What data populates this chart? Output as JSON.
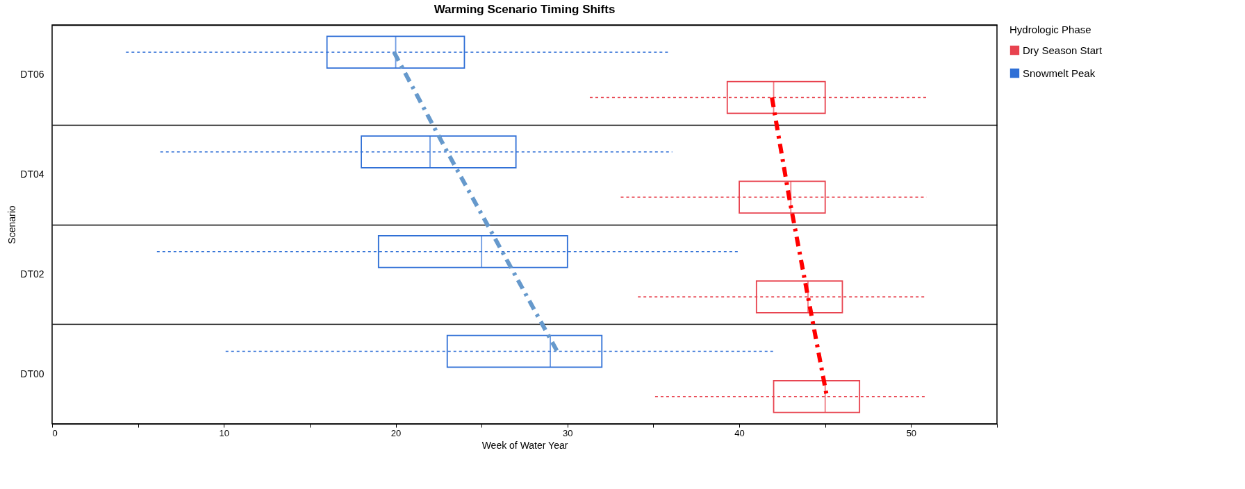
{
  "chart_data": {
    "type": "box",
    "orientation": "horizontal",
    "title": "Warming Scenario Timing Shifts",
    "xlabel": "Week of Water Year",
    "ylabel": "Scenario",
    "legend_title": "Hydrologic Phase",
    "legend": "top right",
    "grid": "y",
    "marker": "none",
    "categories": [
      "DT06",
      "DT04",
      "DT02",
      "DT00"
    ],
    "xlim": [
      0,
      55
    ],
    "xticks": [
      0,
      {
        "value": 5,
        "label": null
      },
      10,
      {
        "value": 15,
        "label": null
      },
      20,
      {
        "value": 25,
        "label": null
      },
      30,
      {
        "value": 35,
        "label": null
      },
      40,
      {
        "value": 45,
        "label": null
      },
      50,
      {
        "value": 55,
        "label": null
      }
    ],
    "series": [
      {
        "name": "Dry Season Start",
        "color": "#e8434f",
        "boxes": [
          {
            "low": 31.3,
            "q1": 39.3,
            "median": 42,
            "q3": 45,
            "high": 50.9
          },
          {
            "low": 33.1,
            "q1": 40,
            "median": 43,
            "q3": 45,
            "high": 50.9
          },
          {
            "low": 34.1,
            "q1": 41,
            "median": 44,
            "q3": 46,
            "high": 50.9
          },
          {
            "low": 35.1,
            "q1": 42,
            "median": 45,
            "q3": 47,
            "high": 50.9
          }
        ]
      },
      {
        "name": "Snowmelt Peak",
        "color": "#2f6fd6",
        "boxes": [
          {
            "low": 4.3,
            "q1": 16,
            "median": 20,
            "q3": 24,
            "high": 35.9
          },
          {
            "low": 6.3,
            "q1": 18,
            "median": 22,
            "q3": 27,
            "high": 36.1
          },
          {
            "low": 6.1,
            "q1": 19,
            "median": 25,
            "q3": 30,
            "high": 40
          },
          {
            "low": 10.1,
            "q1": 23,
            "median": 29,
            "q3": 32,
            "high": 42
          }
        ]
      },
      {
        "type": "line",
        "color": "#ff0000",
        "line_style": "dashed",
        "values": [
          41.9,
          42.9,
          44.0,
          45.1
        ]
      },
      {
        "type": "line",
        "color": "#6699cc",
        "line_style": "dashed",
        "values": [
          19.9,
          23.0,
          26.2,
          29.4
        ]
      }
    ]
  }
}
